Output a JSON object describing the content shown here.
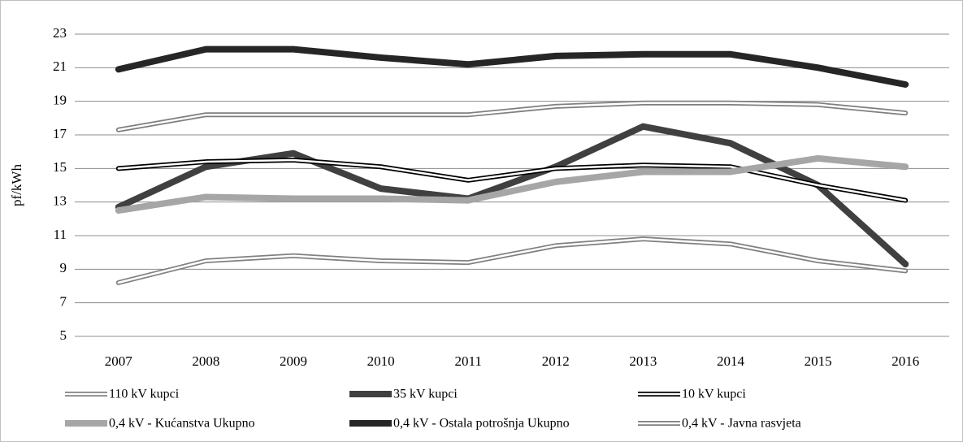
{
  "chart_data": {
    "type": "line",
    "y_label": "pf/kWh",
    "categories": [
      "2007",
      "2008",
      "2009",
      "2010",
      "2011",
      "2012",
      "2013",
      "2014",
      "2015",
      "2016"
    ],
    "ylim": [
      5,
      23
    ],
    "yticks": [
      5,
      7,
      9,
      11,
      13,
      15,
      17,
      19,
      21,
      23
    ],
    "grid": true,
    "series": [
      {
        "name": "110 kV kupci",
        "color": "#808080",
        "style": "double",
        "values": [
          8.2,
          9.5,
          9.8,
          9.5,
          9.4,
          10.4,
          10.8,
          10.5,
          9.5,
          8.9
        ]
      },
      {
        "name": "35 kV kupci",
        "color": "#404040",
        "style": "thick",
        "values": [
          12.7,
          15.1,
          15.9,
          13.8,
          13.2,
          15.1,
          17.5,
          16.5,
          14.0,
          9.3
        ]
      },
      {
        "name": "10 kV kupci",
        "color": "#000000",
        "style": "double",
        "values": [
          15.0,
          15.4,
          15.5,
          15.1,
          14.3,
          15.0,
          15.2,
          15.1,
          14.0,
          13.1
        ]
      },
      {
        "name": "0,4 kV - Kućanstva Ukupno",
        "color": "#a6a6a6",
        "style": "thick",
        "values": [
          12.5,
          13.3,
          13.2,
          13.2,
          13.1,
          14.2,
          14.8,
          14.8,
          15.6,
          15.1
        ]
      },
      {
        "name": "0,4 kV - Ostala potrošnja Ukupno",
        "color": "#262626",
        "style": "thick",
        "values": [
          20.9,
          22.1,
          22.1,
          21.6,
          21.2,
          21.7,
          21.8,
          21.8,
          21.0,
          20.0
        ]
      },
      {
        "name": "0,4 kV - Javna rasvjeta",
        "color": "#7f7f7f",
        "style": "double",
        "values": [
          17.3,
          18.2,
          18.2,
          18.2,
          18.2,
          18.7,
          18.9,
          18.9,
          18.8,
          18.3
        ]
      }
    ]
  }
}
